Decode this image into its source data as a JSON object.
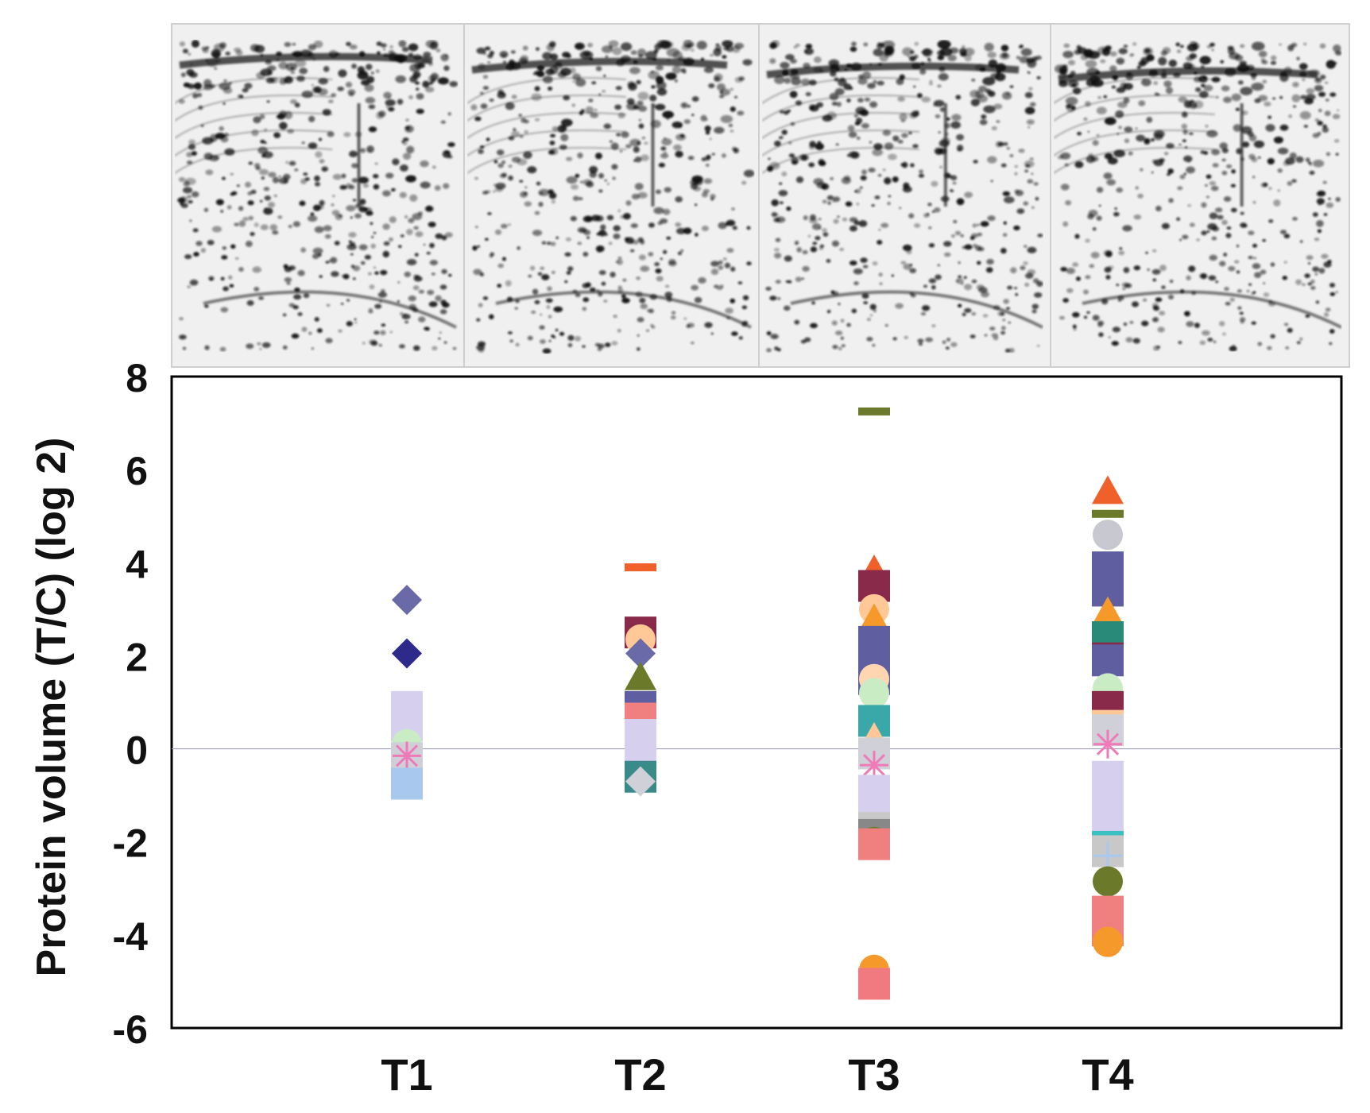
{
  "chart_data": {
    "type": "scatter",
    "title": "",
    "xlabel": "",
    "ylabel": "Protein volume (T/C) (log 2)",
    "categories": [
      "T1",
      "T2",
      "T3",
      "T4"
    ],
    "ylim": [
      -6,
      8
    ],
    "yticks": [
      8,
      6,
      4,
      2,
      0,
      -2,
      -4,
      -6
    ],
    "grid": false,
    "legend": "none",
    "reference_line_y": 0,
    "gel_panels": [
      "T1",
      "T2",
      "T3",
      "T4"
    ],
    "points": [
      {
        "cat": "T1",
        "y": 3.2,
        "shape": "diamond",
        "color": "#6a6aa8"
      },
      {
        "cat": "T1",
        "y": 2.05,
        "shape": "diamond",
        "color": "#2e2a8c"
      },
      {
        "cat": "T1",
        "y": 0.9,
        "shape": "square",
        "color": "#d6d0ee"
      },
      {
        "cat": "T1",
        "y": 0.5,
        "shape": "square",
        "color": "#d6d0ee"
      },
      {
        "cat": "T1",
        "y": 0.1,
        "shape": "circle",
        "color": "#c9ecc4"
      },
      {
        "cat": "T1",
        "y": -0.2,
        "shape": "square",
        "color": "#cfcfd8"
      },
      {
        "cat": "T1",
        "y": -0.15,
        "shape": "asterisk",
        "color": "#f07ab8"
      },
      {
        "cat": "T1",
        "y": -0.75,
        "shape": "square",
        "color": "#a8c8ee"
      },
      {
        "cat": "T2",
        "y": 3.9,
        "shape": "dash",
        "color": "#f0602a"
      },
      {
        "cat": "T2",
        "y": 2.5,
        "shape": "square",
        "color": "#8a2a4a"
      },
      {
        "cat": "T2",
        "y": 2.35,
        "shape": "circle",
        "color": "#ffc896"
      },
      {
        "cat": "T2",
        "y": 2.05,
        "shape": "diamond",
        "color": "#6a6aa8"
      },
      {
        "cat": "T2",
        "y": 1.5,
        "shape": "triangle",
        "color": "#6b7a2a"
      },
      {
        "cat": "T2",
        "y": 0.9,
        "shape": "square",
        "color": "#5e5ea0"
      },
      {
        "cat": "T2",
        "y": 0.65,
        "shape": "square",
        "color": "#f08080"
      },
      {
        "cat": "T2",
        "y": 0.3,
        "shape": "square",
        "color": "#d6d0ee"
      },
      {
        "cat": "T2",
        "y": -0.1,
        "shape": "square",
        "color": "#d6d0ee"
      },
      {
        "cat": "T2",
        "y": -0.6,
        "shape": "square",
        "color": "#3a8a8a"
      },
      {
        "cat": "T2",
        "y": -0.7,
        "shape": "diamond",
        "color": "#d0d0d8"
      },
      {
        "cat": "T3",
        "y": 7.25,
        "shape": "dash",
        "color": "#6b7a2a"
      },
      {
        "cat": "T3",
        "y": 3.8,
        "shape": "triangle",
        "color": "#f0602a"
      },
      {
        "cat": "T3",
        "y": 3.5,
        "shape": "square",
        "color": "#8a2a4a"
      },
      {
        "cat": "T3",
        "y": 3.0,
        "shape": "circle",
        "color": "#ffc896"
      },
      {
        "cat": "T3",
        "y": 2.75,
        "shape": "triangle",
        "color": "#f59a2a"
      },
      {
        "cat": "T3",
        "y": 2.3,
        "shape": "square",
        "color": "#5e5ea0"
      },
      {
        "cat": "T3",
        "y": 1.9,
        "shape": "square",
        "color": "#5e5ea0"
      },
      {
        "cat": "T3",
        "y": 1.5,
        "shape": "square",
        "color": "#5e5ea0"
      },
      {
        "cat": "T3",
        "y": 1.5,
        "shape": "circle",
        "color": "#ffd6b0"
      },
      {
        "cat": "T3",
        "y": 1.2,
        "shape": "circle",
        "color": "#c9ecc4"
      },
      {
        "cat": "T3",
        "y": 0.6,
        "shape": "square",
        "color": "#3aa8a8"
      },
      {
        "cat": "T3",
        "y": 0.2,
        "shape": "triangle",
        "color": "#ffc896"
      },
      {
        "cat": "T3",
        "y": -0.1,
        "shape": "square",
        "color": "#d0d0d8"
      },
      {
        "cat": "T3",
        "y": -0.35,
        "shape": "asterisk",
        "color": "#f07ab8"
      },
      {
        "cat": "T3",
        "y": -0.9,
        "shape": "square",
        "color": "#d6d0ee"
      },
      {
        "cat": "T3",
        "y": -1.3,
        "shape": "square",
        "color": "#d6d0ee"
      },
      {
        "cat": "T3",
        "y": -1.7,
        "shape": "square",
        "color": "#c8c8c8"
      },
      {
        "cat": "T3",
        "y": -1.85,
        "shape": "square",
        "color": "#888888"
      },
      {
        "cat": "T3",
        "y": -2.0,
        "shape": "circle",
        "color": "#6b7a2a"
      },
      {
        "cat": "T3",
        "y": -2.05,
        "shape": "square",
        "color": "#f08080"
      },
      {
        "cat": "T3",
        "y": -4.75,
        "shape": "circle",
        "color": "#f59a2a"
      },
      {
        "cat": "T3",
        "y": -5.05,
        "shape": "square",
        "color": "#f07a80"
      },
      {
        "cat": "T4",
        "y": 5.5,
        "shape": "triangle",
        "color": "#f0602a"
      },
      {
        "cat": "T4",
        "y": 5.05,
        "shape": "dash",
        "color": "#6b7a2a"
      },
      {
        "cat": "T4",
        "y": 4.6,
        "shape": "circle",
        "color": "#c8c8d0"
      },
      {
        "cat": "T4",
        "y": 3.9,
        "shape": "square",
        "color": "#5e5ea0"
      },
      {
        "cat": "T4",
        "y": 3.4,
        "shape": "square",
        "color": "#5e5ea0"
      },
      {
        "cat": "T4",
        "y": 2.9,
        "shape": "triangle",
        "color": "#f59a2a"
      },
      {
        "cat": "T4",
        "y": 2.4,
        "shape": "square",
        "color": "#2a8a7a"
      },
      {
        "cat": "T4",
        "y": 2.2,
        "shape": "dash",
        "color": "#8a2a4a"
      },
      {
        "cat": "T4",
        "y": 1.9,
        "shape": "square",
        "color": "#5e5ea0"
      },
      {
        "cat": "T4",
        "y": 1.3,
        "shape": "circle",
        "color": "#c9ecc4"
      },
      {
        "cat": "T4",
        "y": 0.9,
        "shape": "square",
        "color": "#8a2a4a"
      },
      {
        "cat": "T4",
        "y": 0.75,
        "shape": "dash",
        "color": "#ffc896"
      },
      {
        "cat": "T4",
        "y": 0.4,
        "shape": "square",
        "color": "#d0d0d8"
      },
      {
        "cat": "T4",
        "y": 0.1,
        "shape": "asterisk",
        "color": "#f07ab8"
      },
      {
        "cat": "T4",
        "y": -0.6,
        "shape": "square",
        "color": "#d6d0ee"
      },
      {
        "cat": "T4",
        "y": -1.1,
        "shape": "square",
        "color": "#d6d0ee"
      },
      {
        "cat": "T4",
        "y": -1.6,
        "shape": "square",
        "color": "#d6d0ee"
      },
      {
        "cat": "T4",
        "y": -1.85,
        "shape": "dash",
        "color": "#3ac0c0"
      },
      {
        "cat": "T4",
        "y": -2.2,
        "shape": "square",
        "color": "#c8c8c8"
      },
      {
        "cat": "T4",
        "y": -2.3,
        "shape": "plus",
        "color": "#a8c8ee"
      },
      {
        "cat": "T4",
        "y": -2.85,
        "shape": "circle",
        "color": "#6b7a2a"
      },
      {
        "cat": "T4",
        "y": -3.5,
        "shape": "square",
        "color": "#f08080"
      },
      {
        "cat": "T4",
        "y": -3.9,
        "shape": "square",
        "color": "#f08080"
      },
      {
        "cat": "T4",
        "y": -4.15,
        "shape": "circle",
        "color": "#f59a2a"
      }
    ]
  }
}
